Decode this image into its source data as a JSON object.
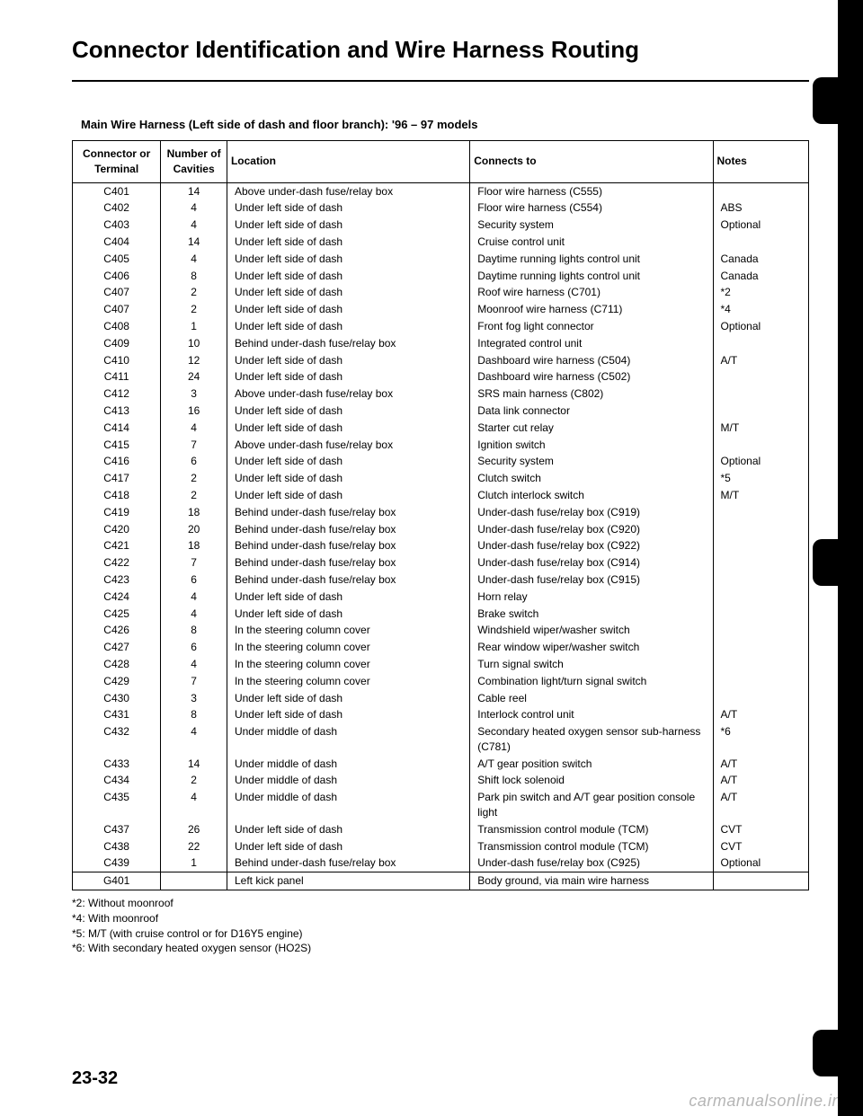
{
  "title": "Connector Identification and Wire Harness Routing",
  "subtitle": "Main Wire Harness (Left side of dash and floor branch): '96 – 97 models",
  "headers": {
    "conn": "Connector or Terminal",
    "cav": "Number of Cavities",
    "loc": "Location",
    "to": "Connects to",
    "note": "Notes"
  },
  "rows": [
    {
      "conn": "C401",
      "cav": "14",
      "loc": "Above under-dash fuse/relay box",
      "to": "Floor wire harness (C555)",
      "note": ""
    },
    {
      "conn": "C402",
      "cav": "4",
      "loc": "Under left side of dash",
      "to": "Floor wire harness (C554)",
      "note": "ABS"
    },
    {
      "conn": "C403",
      "cav": "4",
      "loc": "Under left side of dash",
      "to": "Security system",
      "note": "Optional"
    },
    {
      "conn": "C404",
      "cav": "14",
      "loc": "Under left side of dash",
      "to": "Cruise control unit",
      "note": ""
    },
    {
      "conn": "C405",
      "cav": "4",
      "loc": "Under left side of dash",
      "to": "Daytime running lights control unit",
      "note": "Canada"
    },
    {
      "conn": "C406",
      "cav": "8",
      "loc": "Under left side of dash",
      "to": "Daytime running lights control unit",
      "note": "Canada"
    },
    {
      "conn": "C407",
      "cav": "2",
      "loc": "Under left side of dash",
      "to": "Roof wire harness (C701)",
      "note": "*2"
    },
    {
      "conn": "C407",
      "cav": "2",
      "loc": "Under left side of dash",
      "to": "Moonroof wire harness (C711)",
      "note": "*4"
    },
    {
      "conn": "C408",
      "cav": "1",
      "loc": "Under left side of dash",
      "to": "Front fog light connector",
      "note": "Optional"
    },
    {
      "conn": "C409",
      "cav": "10",
      "loc": "Behind under-dash fuse/relay box",
      "to": "Integrated control unit",
      "note": ""
    },
    {
      "conn": "C410",
      "cav": "12",
      "loc": "Under left side of dash",
      "to": "Dashboard wire harness (C504)",
      "note": "A/T"
    },
    {
      "conn": "C411",
      "cav": "24",
      "loc": "Under left side of dash",
      "to": "Dashboard wire harness (C502)",
      "note": ""
    },
    {
      "conn": "C412",
      "cav": "3",
      "loc": "Above under-dash fuse/relay box",
      "to": "SRS main harness (C802)",
      "note": ""
    },
    {
      "conn": "C413",
      "cav": "16",
      "loc": "Under left side of dash",
      "to": "Data link connector",
      "note": ""
    },
    {
      "conn": "C414",
      "cav": "4",
      "loc": "Under left side of dash",
      "to": "Starter cut relay",
      "note": "M/T"
    },
    {
      "conn": "C415",
      "cav": "7",
      "loc": "Above under-dash fuse/relay box",
      "to": "Ignition switch",
      "note": ""
    },
    {
      "conn": "C416",
      "cav": "6",
      "loc": "Under left side of dash",
      "to": "Security system",
      "note": "Optional"
    },
    {
      "conn": "C417",
      "cav": "2",
      "loc": "Under left side of dash",
      "to": "Clutch switch",
      "note": "*5"
    },
    {
      "conn": "C418",
      "cav": "2",
      "loc": "Under left side of dash",
      "to": "Clutch interlock switch",
      "note": "M/T"
    },
    {
      "conn": "C419",
      "cav": "18",
      "loc": "Behind under-dash fuse/relay box",
      "to": "Under-dash fuse/relay box (C919)",
      "note": ""
    },
    {
      "conn": "C420",
      "cav": "20",
      "loc": "Behind under-dash fuse/relay box",
      "to": "Under-dash fuse/relay box (C920)",
      "note": ""
    },
    {
      "conn": "C421",
      "cav": "18",
      "loc": "Behind under-dash fuse/relay box",
      "to": "Under-dash fuse/relay box (C922)",
      "note": ""
    },
    {
      "conn": "C422",
      "cav": "7",
      "loc": "Behind under-dash fuse/relay box",
      "to": "Under-dash fuse/relay box (C914)",
      "note": ""
    },
    {
      "conn": "C423",
      "cav": "6",
      "loc": "Behind under-dash fuse/relay box",
      "to": "Under-dash fuse/relay box (C915)",
      "note": ""
    },
    {
      "conn": "C424",
      "cav": "4",
      "loc": "Under left side of dash",
      "to": "Horn relay",
      "note": ""
    },
    {
      "conn": "C425",
      "cav": "4",
      "loc": "Under left side of dash",
      "to": "Brake switch",
      "note": ""
    },
    {
      "conn": "C426",
      "cav": "8",
      "loc": "In the steering column cover",
      "to": "Windshield wiper/washer switch",
      "note": ""
    },
    {
      "conn": "C427",
      "cav": "6",
      "loc": "In the steering column cover",
      "to": "Rear window wiper/washer switch",
      "note": ""
    },
    {
      "conn": "C428",
      "cav": "4",
      "loc": "In the steering column cover",
      "to": "Turn signal switch",
      "note": ""
    },
    {
      "conn": "C429",
      "cav": "7",
      "loc": "In the steering column cover",
      "to": "Combination light/turn signal switch",
      "note": ""
    },
    {
      "conn": "C430",
      "cav": "3",
      "loc": "Under left side of dash",
      "to": "Cable reel",
      "note": ""
    },
    {
      "conn": "C431",
      "cav": "8",
      "loc": "Under left side of dash",
      "to": "Interlock control unit",
      "note": "A/T"
    },
    {
      "conn": "C432",
      "cav": "4",
      "loc": "Under middle of dash",
      "to": "Secondary heated oxygen sensor sub-harness (C781)",
      "note": "*6"
    },
    {
      "conn": "C433",
      "cav": "14",
      "loc": "Under middle of dash",
      "to": "A/T gear position switch",
      "note": "A/T"
    },
    {
      "conn": "C434",
      "cav": "2",
      "loc": "Under middle of dash",
      "to": "Shift lock solenoid",
      "note": "A/T"
    },
    {
      "conn": "C435",
      "cav": "4",
      "loc": "Under middle of dash",
      "to": "Park pin switch and A/T gear position console light",
      "note": "A/T"
    },
    {
      "conn": "C437",
      "cav": "26",
      "loc": "Under left side of dash",
      "to": "Transmission control module (TCM)",
      "note": "CVT"
    },
    {
      "conn": "C438",
      "cav": "22",
      "loc": "Under left side of dash",
      "to": "Transmission control module (TCM)",
      "note": "CVT"
    },
    {
      "conn": "C439",
      "cav": "1",
      "loc": "Behind under-dash fuse/relay box",
      "to": "Under-dash fuse/relay box (C925)",
      "note": "Optional"
    }
  ],
  "groundRow": {
    "conn": "G401",
    "cav": "",
    "loc": "Left kick panel",
    "to": "Body ground, via main wire harness",
    "note": ""
  },
  "footnotes": [
    "*2: Without moonroof",
    "*4: With moonroof",
    "*5: M/T (with cruise control or for D16Y5 engine)",
    "*6: With secondary heated oxygen sensor (HO2S)"
  ],
  "pageNumber": "23-32",
  "watermark": "carmanualsonline.info"
}
